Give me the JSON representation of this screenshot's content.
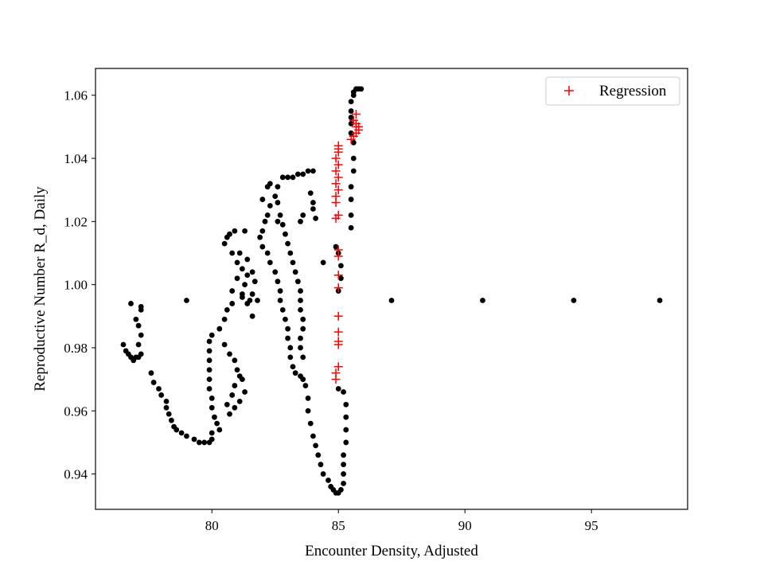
{
  "chart_data": {
    "type": "scatter",
    "title": "",
    "xlabel": "Encounter Density, Adjusted",
    "ylabel": "Reproductive Number R_d, Daily",
    "xlim": [
      75.4,
      98.8
    ],
    "ylim": [
      0.9288,
      1.0685
    ],
    "xticks": [
      80,
      85,
      90,
      95
    ],
    "yticks": [
      0.94,
      0.96,
      0.98,
      1.0,
      1.02,
      1.04,
      1.06
    ],
    "ytick_labels": [
      "0.94",
      "0.96",
      "0.98",
      "1.00",
      "1.02",
      "1.04",
      "1.06"
    ],
    "grid": false,
    "legend_position": "top-right",
    "colors": {
      "data": "#000000",
      "regression": "#ff0000"
    },
    "series": [
      {
        "name": "",
        "marker": "dot",
        "color": "#000000",
        "points": [
          [
            76.5,
            0.981
          ],
          [
            76.6,
            0.979
          ],
          [
            76.7,
            0.978
          ],
          [
            76.8,
            0.977
          ],
          [
            76.9,
            0.976
          ],
          [
            77.0,
            0.977
          ],
          [
            77.1,
            0.977
          ],
          [
            76.8,
            0.994
          ],
          [
            77.2,
            0.993
          ],
          [
            77.2,
            0.992
          ],
          [
            77.0,
            0.989
          ],
          [
            77.1,
            0.987
          ],
          [
            77.2,
            0.984
          ],
          [
            77.1,
            0.981
          ],
          [
            77.2,
            0.978
          ],
          [
            77.6,
            0.972
          ],
          [
            77.7,
            0.969
          ],
          [
            77.9,
            0.967
          ],
          [
            78.0,
            0.965
          ],
          [
            78.2,
            0.963
          ],
          [
            78.2,
            0.961
          ],
          [
            78.3,
            0.959
          ],
          [
            78.4,
            0.957
          ],
          [
            78.5,
            0.955
          ],
          [
            78.6,
            0.954
          ],
          [
            78.8,
            0.953
          ],
          [
            79.0,
            0.952
          ],
          [
            79.3,
            0.951
          ],
          [
            79.5,
            0.95
          ],
          [
            79.7,
            0.95
          ],
          [
            79.9,
            0.95
          ],
          [
            80.0,
            0.951
          ],
          [
            80.0,
            0.953
          ],
          [
            79.0,
            0.995
          ],
          [
            79.9,
            0.982
          ],
          [
            79.9,
            0.979
          ],
          [
            79.9,
            0.976
          ],
          [
            79.9,
            0.973
          ],
          [
            79.9,
            0.97
          ],
          [
            79.9,
            0.967
          ],
          [
            80.0,
            0.964
          ],
          [
            80.0,
            0.961
          ],
          [
            80.1,
            0.958
          ],
          [
            80.2,
            0.956
          ],
          [
            80.3,
            0.954
          ],
          [
            80.0,
            0.984
          ],
          [
            80.3,
            0.986
          ],
          [
            80.5,
            0.989
          ],
          [
            80.6,
            0.992
          ],
          [
            80.8,
            0.994
          ],
          [
            80.5,
            0.981
          ],
          [
            80.7,
            0.978
          ],
          [
            80.9,
            0.976
          ],
          [
            81.0,
            0.973
          ],
          [
            81.2,
            0.97
          ],
          [
            81.3,
            0.966
          ],
          [
            81.1,
            0.963
          ],
          [
            80.9,
            0.961
          ],
          [
            80.7,
            0.959
          ],
          [
            80.6,
            0.962
          ],
          [
            80.8,
            0.965
          ],
          [
            80.9,
            0.968
          ],
          [
            81.1,
            0.971
          ],
          [
            80.5,
            1.013
          ],
          [
            80.6,
            1.015
          ],
          [
            80.7,
            1.016
          ],
          [
            80.9,
            1.017
          ],
          [
            80.8,
            1.01
          ],
          [
            81.0,
            1.007
          ],
          [
            81.2,
            1.005
          ],
          [
            81.4,
            1.003
          ],
          [
            81.3,
            1.0
          ],
          [
            81.2,
            0.997
          ],
          [
            81.3,
            1.017
          ],
          [
            81.1,
            1.01
          ],
          [
            81.0,
            1.002
          ],
          [
            80.8,
            0.998
          ],
          [
            81.4,
            1.008
          ],
          [
            81.6,
            1.004
          ],
          [
            81.7,
            1.001
          ],
          [
            81.5,
            0.995
          ],
          [
            81.6,
            0.99
          ],
          [
            81.9,
            1.015
          ],
          [
            82.0,
            1.017
          ],
          [
            82.1,
            1.02
          ],
          [
            82.2,
            1.022
          ],
          [
            82.3,
            1.025
          ],
          [
            82.2,
            1.031
          ],
          [
            82.3,
            1.032
          ],
          [
            82.6,
            1.031
          ],
          [
            82.8,
            1.034
          ],
          [
            83.0,
            1.034
          ],
          [
            83.2,
            1.034
          ],
          [
            83.4,
            1.035
          ],
          [
            83.6,
            1.035
          ],
          [
            83.8,
            1.036
          ],
          [
            84.0,
            1.036
          ],
          [
            83.9,
            1.029
          ],
          [
            84.0,
            1.026
          ],
          [
            84.0,
            1.024
          ],
          [
            84.1,
            1.021
          ],
          [
            82.0,
            1.012
          ],
          [
            82.2,
            1.01
          ],
          [
            82.3,
            1.007
          ],
          [
            82.5,
            1.004
          ],
          [
            82.6,
            1.001
          ],
          [
            82.7,
            0.998
          ],
          [
            82.7,
            0.995
          ],
          [
            82.8,
            0.992
          ],
          [
            82.9,
            0.989
          ],
          [
            83.0,
            0.986
          ],
          [
            83.0,
            0.983
          ],
          [
            83.1,
            0.98
          ],
          [
            83.1,
            0.977
          ],
          [
            83.2,
            0.974
          ],
          [
            83.3,
            0.972
          ],
          [
            83.5,
            0.971
          ],
          [
            83.6,
            0.97
          ],
          [
            82.5,
            1.028
          ],
          [
            82.6,
            1.026
          ],
          [
            82.7,
            1.022
          ],
          [
            82.8,
            1.019
          ],
          [
            82.9,
            1.016
          ],
          [
            83.0,
            1.013
          ],
          [
            83.1,
            1.01
          ],
          [
            83.2,
            1.007
          ],
          [
            83.3,
            1.004
          ],
          [
            83.4,
            1.001
          ],
          [
            83.5,
            0.998
          ],
          [
            83.5,
            0.995
          ],
          [
            83.5,
            0.992
          ],
          [
            83.6,
            0.989
          ],
          [
            83.6,
            0.986
          ],
          [
            83.5,
            0.983
          ],
          [
            83.5,
            0.98
          ],
          [
            83.6,
            0.977
          ],
          [
            83.7,
            0.968
          ],
          [
            83.8,
            0.964
          ],
          [
            83.8,
            0.96
          ],
          [
            83.9,
            0.956
          ],
          [
            84.0,
            0.952
          ],
          [
            84.1,
            0.949
          ],
          [
            84.2,
            0.946
          ],
          [
            84.3,
            0.943
          ],
          [
            84.4,
            0.94
          ],
          [
            84.6,
            0.938
          ],
          [
            84.7,
            0.936
          ],
          [
            84.8,
            0.935
          ],
          [
            84.9,
            0.934
          ],
          [
            85.0,
            0.934
          ],
          [
            85.1,
            0.935
          ],
          [
            85.2,
            0.937
          ],
          [
            85.2,
            0.94
          ],
          [
            85.2,
            0.943
          ],
          [
            85.2,
            0.946
          ],
          [
            85.3,
            0.95
          ],
          [
            85.3,
            0.954
          ],
          [
            85.3,
            0.958
          ],
          [
            85.3,
            0.962
          ],
          [
            85.2,
            0.966
          ],
          [
            85.0,
            0.967
          ],
          [
            85.0,
            0.998
          ],
          [
            85.1,
            1.002
          ],
          [
            85.1,
            1.006
          ],
          [
            85.0,
            1.01
          ],
          [
            84.9,
            1.012
          ],
          [
            85.5,
            1.018
          ],
          [
            85.5,
            1.022
          ],
          [
            85.5,
            1.027
          ],
          [
            85.5,
            1.031
          ],
          [
            85.6,
            1.036
          ],
          [
            85.6,
            1.04
          ],
          [
            85.6,
            1.045
          ],
          [
            85.5,
            1.048
          ],
          [
            85.5,
            1.051
          ],
          [
            85.5,
            1.053
          ],
          [
            85.5,
            1.055
          ],
          [
            85.5,
            1.058
          ],
          [
            85.6,
            1.06
          ],
          [
            85.6,
            1.061
          ],
          [
            85.7,
            1.062
          ],
          [
            85.8,
            1.062
          ],
          [
            85.9,
            1.062
          ],
          [
            81.6,
            0.997
          ],
          [
            81.8,
            0.995
          ],
          [
            81.2,
            0.996
          ],
          [
            81.4,
            0.994
          ],
          [
            84.4,
            1.007
          ],
          [
            83.5,
            1.02
          ],
          [
            83.6,
            1.022
          ],
          [
            82.0,
            1.027
          ],
          [
            82.6,
            1.02
          ],
          [
            87.1,
            0.995
          ],
          [
            90.7,
            0.995
          ],
          [
            94.3,
            0.995
          ],
          [
            97.7,
            0.995
          ]
        ]
      },
      {
        "name": "Regression",
        "marker": "plus",
        "color": "#ff0000",
        "points": [
          [
            84.9,
            0.97
          ],
          [
            84.9,
            0.972
          ],
          [
            85.0,
            0.974
          ],
          [
            85.0,
            0.981
          ],
          [
            85.0,
            0.982
          ],
          [
            85.0,
            0.985
          ],
          [
            85.0,
            0.99
          ],
          [
            85.0,
            0.999
          ],
          [
            85.0,
            1.003
          ],
          [
            85.0,
            1.009
          ],
          [
            85.0,
            1.011
          ],
          [
            84.9,
            1.021
          ],
          [
            85.0,
            1.022
          ],
          [
            84.9,
            1.026
          ],
          [
            84.9,
            1.028
          ],
          [
            85.0,
            1.03
          ],
          [
            84.9,
            1.032
          ],
          [
            85.0,
            1.034
          ],
          [
            84.9,
            1.036
          ],
          [
            85.0,
            1.038
          ],
          [
            84.9,
            1.04
          ],
          [
            85.0,
            1.042
          ],
          [
            85.0,
            1.043
          ],
          [
            85.0,
            1.044
          ],
          [
            85.5,
            1.046
          ],
          [
            85.6,
            1.047
          ],
          [
            85.7,
            1.048
          ],
          [
            85.8,
            1.049
          ],
          [
            85.8,
            1.05
          ],
          [
            85.7,
            1.05
          ],
          [
            85.7,
            1.051
          ],
          [
            85.6,
            1.052
          ],
          [
            85.7,
            1.054
          ]
        ]
      }
    ]
  }
}
